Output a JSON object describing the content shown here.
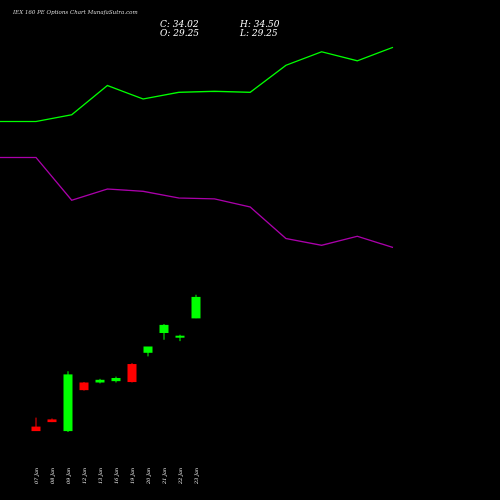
{
  "header": {
    "title": "IEX 160 PE Options Chart MunafaSutra.com",
    "close": "C: 34.02",
    "high": "H: 34.50",
    "open": "O: 29.25",
    "low": "L: 29.25"
  },
  "colors": {
    "background": "#000000",
    "up": "#00ff00",
    "down": "#ff0000",
    "upper_band": "#00ff00",
    "lower_band": "#aa00aa"
  },
  "chart_data": {
    "type": "candlestick",
    "categories": [
      "07 Jan",
      "08 Jan",
      "09 Jan",
      "12 Jan",
      "13 Jan",
      "16 Jan",
      "19 Jan",
      "20 Jan",
      "21 Jan",
      "22 Jan",
      "23 Jan"
    ],
    "candles": [
      {
        "date": "07 Jan",
        "open": 5.2,
        "high": 7.2,
        "low": 4.3,
        "close": 4.2,
        "dir": "down"
      },
      {
        "date": "08 Jan",
        "open": 6.8,
        "high": 7.0,
        "low": 6.2,
        "close": 6.2,
        "dir": "down"
      },
      {
        "date": "09 Jan",
        "open": 4.2,
        "high": 17.5,
        "low": 4.0,
        "close": 16.8,
        "dir": "up"
      },
      {
        "date": "12 Jan",
        "open": 15.0,
        "high": 15.1,
        "low": 13.2,
        "close": 13.3,
        "dir": "down"
      },
      {
        "date": "13 Jan",
        "open": 15.0,
        "high": 15.8,
        "low": 14.8,
        "close": 15.6,
        "dir": "up"
      },
      {
        "date": "16 Jan",
        "open": 15.3,
        "high": 16.3,
        "low": 15.0,
        "close": 16.0,
        "dir": "up"
      },
      {
        "date": "19 Jan",
        "open": 19.1,
        "high": 19.3,
        "low": 15.0,
        "close": 15.1,
        "dir": "down"
      },
      {
        "date": "20 Jan",
        "open": 21.6,
        "high": 23.0,
        "low": 20.8,
        "close": 23.0,
        "dir": "up"
      },
      {
        "date": "21 Jan",
        "open": 26.0,
        "high": 28.0,
        "low": 24.5,
        "close": 27.8,
        "dir": "up"
      },
      {
        "date": "22 Jan",
        "open": 25.0,
        "high": 25.6,
        "low": 24.2,
        "close": 25.4,
        "dir": "up"
      },
      {
        "date": "23 Jan",
        "open": 29.25,
        "high": 34.5,
        "low": 29.25,
        "close": 34.02,
        "dir": "up"
      }
    ],
    "upper_band": [
      73,
      73,
      74.5,
      81,
      78,
      79.5,
      79.7,
      79.5,
      85.5,
      88.5,
      86.5,
      89.5
    ],
    "lower_band": [
      65,
      65,
      55.5,
      58,
      57.5,
      56,
      55.8,
      54,
      47,
      45.5,
      47.5,
      45
    ],
    "ylim": [
      0,
      100
    ]
  }
}
